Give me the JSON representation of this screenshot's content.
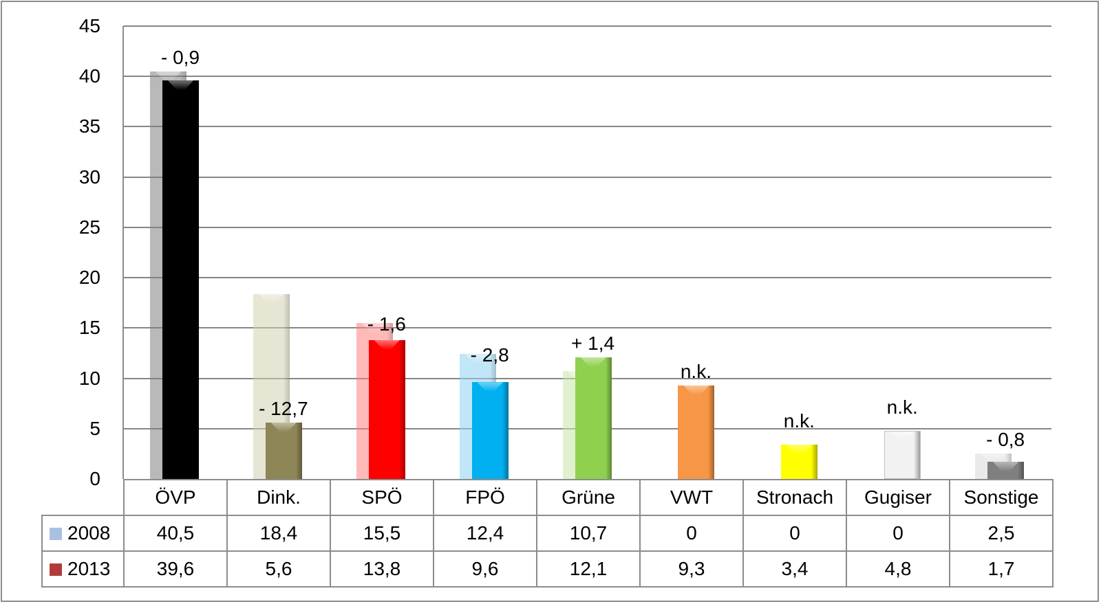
{
  "chart_data": {
    "type": "bar",
    "title": "",
    "xlabel": "",
    "ylabel": "",
    "ylim": [
      0,
      45
    ],
    "yticks": [
      0,
      5,
      10,
      15,
      20,
      25,
      30,
      35,
      40,
      45
    ],
    "grid": true,
    "legend_position": "data-table",
    "categories": [
      "ÖVP",
      "Dink.",
      "SPÖ",
      "FPÖ",
      "Grüne",
      "VWT",
      "Stronach",
      "Gugiser",
      "Sonstige"
    ],
    "series": [
      {
        "name": "2008",
        "values": [
          40.5,
          18.4,
          15.5,
          12.4,
          10.7,
          0,
          0,
          0,
          2.5
        ],
        "labels": [
          "40,5",
          "18,4",
          "15,5",
          "12,4",
          "10,7",
          "0",
          "0",
          "0",
          "2,5"
        ]
      },
      {
        "name": "2013",
        "values": [
          39.6,
          5.6,
          13.8,
          9.6,
          12.1,
          9.3,
          3.4,
          4.8,
          1.7
        ],
        "labels": [
          "39,6",
          "5,6",
          "13,8",
          "9,6",
          "12,1",
          "9,3",
          "3,4",
          "4,8",
          "1,7"
        ]
      }
    ],
    "annotations": [
      "- 0,9",
      "- 12,7",
      "- 1,6",
      "- 2,8",
      "+ 1,4",
      "n.k.",
      "n.k.",
      "n.k.",
      "- 0,8"
    ],
    "colors_2013": [
      "#000000",
      "#8e8656",
      "#ff0000",
      "#00b0f0",
      "#8fd14f",
      "#f79646",
      "#ffff00",
      "#f2f2f2",
      "#7f7f7f"
    ],
    "colors_2008": [
      "#7f7f7f",
      "#d4d0b0",
      "#ff8080",
      "#8fd3f4",
      "#c9e7a7",
      "#f79646",
      "#ffff00",
      "#f2f2f2",
      "#d9d9d9"
    ],
    "legend_colors": {
      "2008": "#a9c1e0",
      "2013": "#b33a3a"
    }
  }
}
